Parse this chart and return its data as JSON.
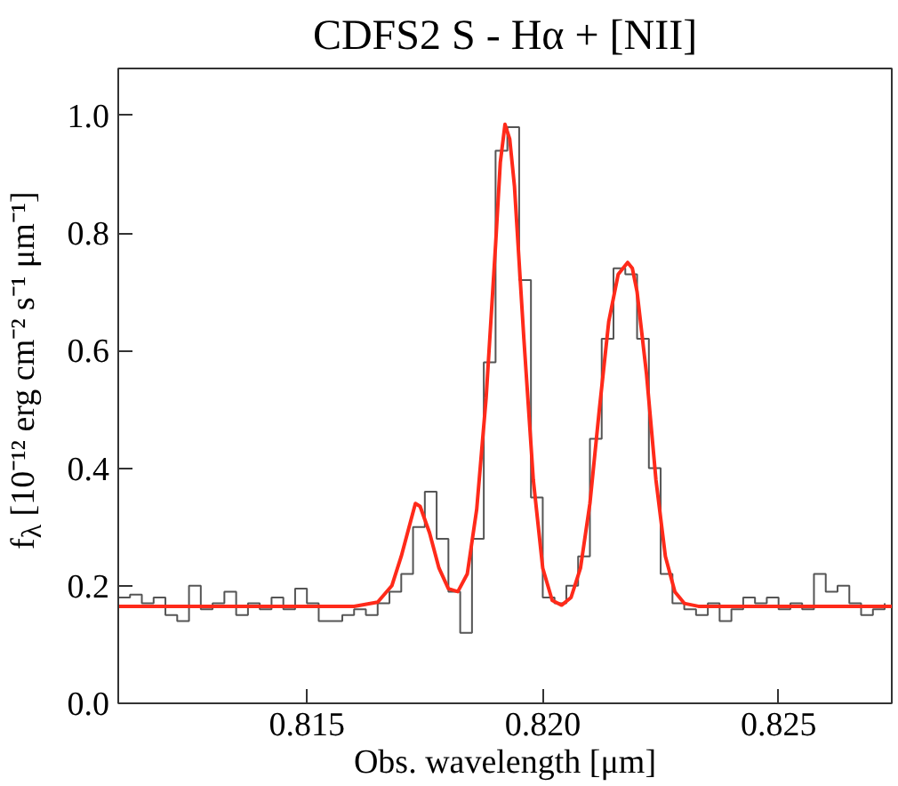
{
  "chart_data": {
    "type": "line",
    "title": "CDFS2 S - Hα + [NII]",
    "xlabel": "Obs. wavelength [μm]",
    "ylabel": "f$_{λ}$ [10⁻¹² erg cm⁻² s⁻¹ μm⁻¹]",
    "xlim": [
      0.811,
      0.8274
    ],
    "ylim": [
      0,
      1.08
    ],
    "xticks": [
      {
        "value": 0.815,
        "label": "0.815"
      },
      {
        "value": 0.82,
        "label": "0.820"
      },
      {
        "value": 0.825,
        "label": "0.825"
      }
    ],
    "yticks": [
      {
        "value": 0,
        "label": "0.0"
      },
      {
        "value": 0.2,
        "label": "0.2"
      },
      {
        "value": 0.4,
        "label": "0.4"
      },
      {
        "value": 0.6,
        "label": "0.6"
      },
      {
        "value": 0.8,
        "label": "0.8"
      },
      {
        "value": 1.0,
        "label": "1.0"
      }
    ],
    "grid": false,
    "series": [
      {
        "type": "step",
        "color": "#555555",
        "x": [
          0.811,
          0.81125,
          0.8115,
          0.81175,
          0.812,
          0.81225,
          0.8125,
          0.81275,
          0.813,
          0.81325,
          0.8135,
          0.81375,
          0.814,
          0.81425,
          0.8145,
          0.81475,
          0.815,
          0.81525,
          0.8155,
          0.81575,
          0.816,
          0.81625,
          0.8165,
          0.81675,
          0.817,
          0.81725,
          0.8175,
          0.81775,
          0.818,
          0.81825,
          0.8185,
          0.81875,
          0.819,
          0.81925,
          0.8195,
          0.81975,
          0.82,
          0.82025,
          0.8205,
          0.82075,
          0.821,
          0.82125,
          0.8215,
          0.82175,
          0.822,
          0.82225,
          0.8225,
          0.82275,
          0.823,
          0.82325,
          0.8235,
          0.82375,
          0.824,
          0.82425,
          0.8245,
          0.82475,
          0.825,
          0.82525,
          0.8255,
          0.82575,
          0.826,
          0.82625,
          0.8265,
          0.82675,
          0.827,
          0.82725
        ],
        "values": [
          0.18,
          0.185,
          0.17,
          0.18,
          0.15,
          0.14,
          0.2,
          0.16,
          0.17,
          0.19,
          0.15,
          0.17,
          0.16,
          0.18,
          0.16,
          0.195,
          0.17,
          0.14,
          0.14,
          0.15,
          0.16,
          0.15,
          0.17,
          0.19,
          0.22,
          0.3,
          0.36,
          0.28,
          0.19,
          0.12,
          0.28,
          0.58,
          0.94,
          0.98,
          0.72,
          0.35,
          0.18,
          0.17,
          0.2,
          0.25,
          0.45,
          0.62,
          0.74,
          0.73,
          0.62,
          0.4,
          0.22,
          0.17,
          0.16,
          0.15,
          0.17,
          0.14,
          0.16,
          0.18,
          0.17,
          0.18,
          0.16,
          0.17,
          0.16,
          0.22,
          0.19,
          0.2,
          0.17,
          0.15,
          0.16,
          0.17
        ]
      },
      {
        "type": "line",
        "color": "#ff2a1a",
        "x": [
          0.811,
          0.816,
          0.8165,
          0.8168,
          0.817,
          0.8172,
          0.8173,
          0.8174,
          0.8176,
          0.8178,
          0.818,
          0.8182,
          0.8184,
          0.8186,
          0.8188,
          0.819,
          0.8191,
          0.8192,
          0.8193,
          0.8194,
          0.8196,
          0.8198,
          0.82,
          0.8202,
          0.8204,
          0.8206,
          0.8208,
          0.821,
          0.8212,
          0.8214,
          0.8216,
          0.8218,
          0.8219,
          0.822,
          0.8222,
          0.8224,
          0.8226,
          0.8228,
          0.823,
          0.8233,
          0.8274
        ],
        "values": [
          0.165,
          0.165,
          0.172,
          0.2,
          0.25,
          0.31,
          0.34,
          0.335,
          0.29,
          0.23,
          0.195,
          0.19,
          0.22,
          0.33,
          0.52,
          0.78,
          0.92,
          0.985,
          0.96,
          0.88,
          0.62,
          0.38,
          0.23,
          0.175,
          0.167,
          0.18,
          0.23,
          0.34,
          0.5,
          0.65,
          0.73,
          0.75,
          0.74,
          0.7,
          0.56,
          0.38,
          0.25,
          0.19,
          0.17,
          0.165,
          0.165
        ]
      }
    ]
  }
}
